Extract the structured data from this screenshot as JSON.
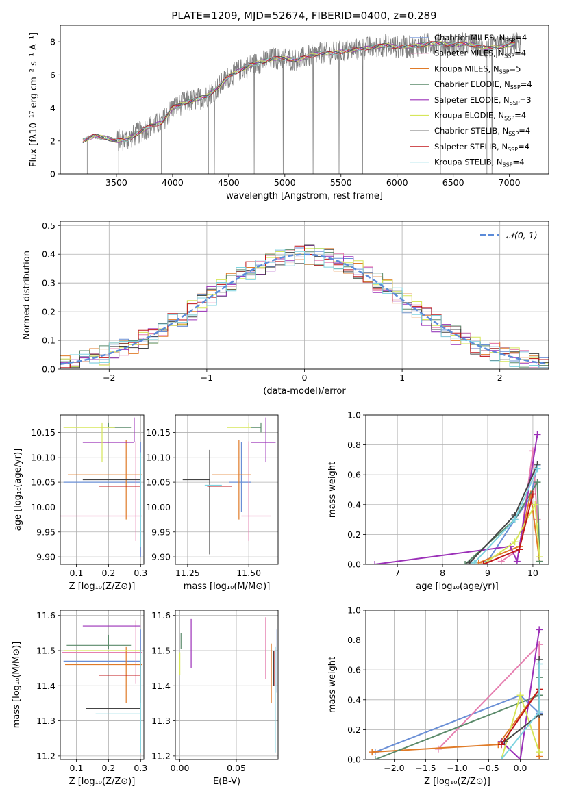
{
  "figure": {
    "title": "PLATE=1209, MJD=52674, FIBERID=0400, z=0.289"
  },
  "colors": {
    "Chabrier MILES": "#6a8fd6",
    "Salpeter MILES": "#e67fb0",
    "Kroupa MILES": "#e07b28",
    "Chabrier ELODIE": "#5a8a6a",
    "Salpeter ELODIE": "#9b30b8",
    "Kroupa ELODIE": "#d6e65a",
    "Chabrier STELIB": "#444444",
    "Salpeter STELIB": "#c0161a",
    "Kroupa STELIB": "#7dd3e0",
    "data": "#808080",
    "normal": "#5b8bd9"
  },
  "chart_data": [
    {
      "id": "spectrum",
      "type": "line",
      "xlabel": "wavelength [Angstrom, rest frame]",
      "ylabel": "Flux [fλ10⁻¹⁷ erg cm⁻² s⁻¹ A⁻¹]",
      "xlim": [
        3000,
        7350
      ],
      "ylim": [
        0,
        9
      ],
      "xticks": [
        3500,
        4000,
        4500,
        5000,
        5500,
        6000,
        6500,
        7000
      ],
      "yticks": [
        0,
        2,
        4,
        6,
        8
      ],
      "legend_position": "top-right",
      "legend": [
        {
          "label": "Chabrier MILES, N",
          "sub": "SSP",
          "tail": "=4",
          "key": "Chabrier MILES"
        },
        {
          "label": "Salpeter MILES, N",
          "sub": "SSP",
          "tail": "=4",
          "key": "Salpeter MILES"
        },
        {
          "label": "Kroupa MILES, N",
          "sub": "SSP",
          "tail": "=5",
          "key": "Kroupa MILES"
        },
        {
          "label": "Chabrier ELODIE, N",
          "sub": "SSP",
          "tail": "=4",
          "key": "Chabrier ELODIE"
        },
        {
          "label": "Salpeter ELODIE, N",
          "sub": "SSP",
          "tail": "=3",
          "key": "Salpeter ELODIE"
        },
        {
          "label": "Kroupa ELODIE, N",
          "sub": "SSP",
          "tail": "=4",
          "key": "Kroupa ELODIE"
        },
        {
          "label": "Chabrier STELIB, N",
          "sub": "SSP",
          "tail": "=4",
          "key": "Chabrier STELIB"
        },
        {
          "label": "Salpeter STELIB, N",
          "sub": "SSP",
          "tail": "=4",
          "key": "Salpeter STELIB"
        },
        {
          "label": "Kroupa STELIB, N",
          "sub": "SSP",
          "tail": "=4",
          "key": "Kroupa STELIB"
        }
      ],
      "continuum": {
        "x": [
          3200,
          3300,
          3400,
          3500,
          3600,
          3700,
          3800,
          3900,
          4000,
          4100,
          4200,
          4300,
          4400,
          4500,
          4600,
          4700,
          4800,
          4900,
          5000,
          5100,
          5200,
          5300,
          5400,
          5500,
          5600,
          5700,
          5800,
          5900,
          6000,
          6100,
          6200,
          6300,
          6400,
          6500,
          6600,
          6700,
          6800,
          6900,
          7000,
          7100,
          7200
        ],
        "y": [
          2.0,
          2.3,
          2.2,
          2.0,
          2.1,
          2.5,
          2.9,
          3.1,
          4.0,
          4.3,
          4.5,
          4.7,
          5.2,
          5.9,
          6.3,
          6.6,
          6.8,
          7.0,
          7.0,
          6.9,
          7.1,
          7.3,
          7.3,
          7.4,
          7.5,
          7.6,
          7.7,
          7.8,
          7.7,
          7.7,
          7.8,
          7.9,
          7.9,
          7.8,
          7.9,
          7.8,
          7.6,
          7.7,
          7.8,
          8.0,
          8.0
        ]
      },
      "data_noise": 0.7,
      "data_range": [
        3200,
        7100
      ]
    },
    {
      "id": "residuals",
      "type": "line",
      "xlabel": "(data-model)/error",
      "ylabel": "Normed distribution",
      "xlim": [
        -2.5,
        2.5
      ],
      "ylim": [
        0,
        0.515
      ],
      "xticks": [
        -2,
        -1,
        0,
        1,
        2
      ],
      "yticks": [
        0.0,
        0.1,
        0.2,
        0.3,
        0.4,
        0.5
      ],
      "grid": true,
      "legend_position": "top-right",
      "legend_label": "𝒩(0, 1)",
      "bin_width": 0.1
    },
    {
      "id": "age_vs_Z",
      "type": "scatter",
      "xlabel": "Z [log₁₀(Z/Z⊙)]",
      "ylabel": "age  [log₁₀(age/yr)]",
      "xlim": [
        0.05,
        0.31
      ],
      "ylim": [
        9.885,
        10.185
      ],
      "xticks": [
        0.1,
        0.2,
        0.3
      ],
      "yticks": [
        9.9,
        9.95,
        10.0,
        10.05,
        10.1,
        10.15
      ],
      "grid": true,
      "points": [
        {
          "key": "Chabrier MILES",
          "x": 0.3,
          "y": 10.05,
          "xerr": [
            0.24,
            0.0
          ],
          "yerr": [
            0.15,
            0.08
          ]
        },
        {
          "key": "Salpeter MILES",
          "x": 0.285,
          "y": 9.982,
          "xerr": [
            0.24,
            0.02
          ],
          "yerr": [
            0.05,
            0.15
          ]
        },
        {
          "key": "Kroupa MILES",
          "x": 0.255,
          "y": 10.065,
          "xerr": [
            0.18,
            0.05
          ],
          "yerr": [
            0.09,
            0.07
          ]
        },
        {
          "key": "Chabrier ELODIE",
          "x": 0.2,
          "y": 10.16,
          "xerr": [
            0.0,
            0.07
          ],
          "yerr": [
            0.0,
            0.01
          ]
        },
        {
          "key": "Salpeter ELODIE",
          "x": 0.28,
          "y": 10.13,
          "xerr": [
            0.16,
            0.0
          ],
          "yerr": [
            0.0,
            0.05
          ]
        },
        {
          "key": "Kroupa ELODIE",
          "x": 0.18,
          "y": 10.16,
          "xerr": [
            0.12,
            0.04
          ],
          "yerr": [
            0.07,
            0.01
          ]
        },
        {
          "key": "Chabrier STELIB",
          "x": 0.24,
          "y": 10.055,
          "xerr": [
            0.12,
            0.06
          ],
          "yerr": [
            0.0,
            0.0
          ]
        },
        {
          "key": "Salpeter STELIB",
          "x": 0.3,
          "y": 10.042,
          "xerr": [
            0.13,
            0.0
          ],
          "yerr": [
            0.0,
            0.0
          ]
        },
        {
          "key": "Kroupa STELIB",
          "x": 0.3,
          "y": 10.05,
          "xerr": [
            0.0,
            0.0
          ],
          "yerr": [
            0.13,
            0.06
          ]
        }
      ]
    },
    {
      "id": "age_vs_mass",
      "type": "scatter",
      "xlabel": "mass [log₁₀(M/M⊙)]",
      "ylabel": "",
      "xlim": [
        11.2,
        11.62
      ],
      "ylim": [
        9.885,
        10.185
      ],
      "xticks": [
        11.25,
        11.5
      ],
      "yticks": [
        9.9,
        9.95,
        10.0,
        10.05,
        10.1,
        10.15
      ],
      "grid": true,
      "points": [
        {
          "key": "Chabrier MILES",
          "x": 11.47,
          "y": 10.05,
          "xerr": [
            0.05,
            0.04
          ],
          "yerr": [
            0.06,
            0.08
          ]
        },
        {
          "key": "Salpeter MILES",
          "x": 11.5,
          "y": 9.982,
          "xerr": [
            0.03,
            0.09
          ],
          "yerr": [
            0.05,
            0.15
          ]
        },
        {
          "key": "Kroupa MILES",
          "x": 11.46,
          "y": 10.065,
          "xerr": [
            0.11,
            0.05
          ],
          "yerr": [
            0.09,
            0.07
          ]
        },
        {
          "key": "Chabrier ELODIE",
          "x": 11.55,
          "y": 10.16,
          "xerr": [
            0.04,
            0.0
          ],
          "yerr": [
            0.01,
            0.01
          ]
        },
        {
          "key": "Salpeter ELODIE",
          "x": 11.57,
          "y": 10.13,
          "xerr": [
            0.06,
            0.04
          ],
          "yerr": [
            0.04,
            0.05
          ]
        },
        {
          "key": "Kroupa ELODIE",
          "x": 11.5,
          "y": 10.16,
          "xerr": [
            0.09,
            0.01
          ],
          "yerr": [
            0.0,
            0.01
          ]
        },
        {
          "key": "Chabrier STELIB",
          "x": 11.34,
          "y": 10.055,
          "xerr": [
            0.11,
            0.0
          ],
          "yerr": [
            0.15,
            0.06
          ]
        },
        {
          "key": "Salpeter STELIB",
          "x": 11.43,
          "y": 10.042,
          "xerr": [
            0.1,
            0.0
          ],
          "yerr": [
            0.0,
            0.0
          ]
        },
        {
          "key": "Kroupa STELIB",
          "x": 11.32,
          "y": 10.044,
          "xerr": [
            0.0,
            0.07
          ],
          "yerr": [
            0.0,
            0.0
          ]
        }
      ]
    },
    {
      "id": "weight_vs_age",
      "type": "line",
      "xlabel": "age  [log₁₀(age/yr)]",
      "ylabel": "mass weight",
      "xlim": [
        6.3,
        10.35
      ],
      "ylim": [
        0,
        1.0
      ],
      "xticks": [
        7,
        8,
        9,
        10
      ],
      "yticks": [
        0.0,
        0.2,
        0.4,
        0.6,
        0.8,
        1.0
      ],
      "grid": true,
      "series": [
        {
          "key": "Chabrier MILES",
          "x": [
            9.0,
            9.6,
            9.95,
            10.1
          ],
          "y": [
            0.02,
            0.3,
            0.45,
            0.66
          ]
        },
        {
          "key": "Salpeter MILES",
          "x": [
            9.3,
            9.7,
            10.0,
            10.1
          ],
          "y": [
            0.02,
            0.1,
            0.76,
            0.3
          ]
        },
        {
          "key": "Kroupa MILES",
          "x": [
            8.8,
            9.7,
            9.95,
            10.15
          ],
          "y": [
            0.01,
            0.12,
            0.47,
            0.02
          ]
        },
        {
          "key": "Chabrier ELODIE",
          "x": [
            8.5,
            9.6,
            10.1,
            10.15
          ],
          "y": [
            0.0,
            0.3,
            0.55,
            0.02
          ]
        },
        {
          "key": "Salpeter ELODIE",
          "x": [
            6.5,
            9.5,
            9.65,
            10.1
          ],
          "y": [
            0.0,
            0.12,
            0.02,
            0.87
          ]
        },
        {
          "key": "Kroupa ELODIE",
          "x": [
            8.9,
            9.6,
            10.05,
            10.15
          ],
          "y": [
            0.0,
            0.15,
            0.4,
            0.05
          ]
        },
        {
          "key": "Chabrier STELIB",
          "x": [
            8.6,
            9.6,
            10.1
          ],
          "y": [
            0.01,
            0.33,
            0.67
          ]
        },
        {
          "key": "Salpeter STELIB",
          "x": [
            8.9,
            9.7,
            10.0
          ],
          "y": [
            0.0,
            0.1,
            0.47
          ]
        },
        {
          "key": "Kroupa STELIB",
          "x": [
            8.7,
            9.6,
            10.1
          ],
          "y": [
            0.01,
            0.3,
            0.64
          ]
        }
      ]
    },
    {
      "id": "mass_vs_Z",
      "type": "scatter",
      "xlabel": "Z [log₁₀(Z/Z⊙)]",
      "ylabel": "mass [log₁₀(M/M⊙)]",
      "xlim": [
        0.05,
        0.31
      ],
      "ylim": [
        11.19,
        11.615
      ],
      "xticks": [
        0.1,
        0.2,
        0.3
      ],
      "yticks": [
        11.2,
        11.3,
        11.4,
        11.5,
        11.6
      ],
      "grid": true,
      "points": [
        {
          "key": "Chabrier MILES",
          "x": 0.3,
          "y": 11.47,
          "xerr": [
            0.24,
            0.0
          ],
          "yerr": [
            0.09,
            0.09
          ]
        },
        {
          "key": "Salpeter MILES",
          "x": 0.285,
          "y": 11.495,
          "xerr": [
            0.23,
            0.02
          ],
          "yerr": [
            0.09,
            0.09
          ]
        },
        {
          "key": "Kroupa MILES",
          "x": 0.255,
          "y": 11.46,
          "xerr": [
            0.19,
            0.05
          ],
          "yerr": [
            0.11,
            0.05
          ]
        },
        {
          "key": "Chabrier ELODIE",
          "x": 0.2,
          "y": 11.515,
          "xerr": [
            0.13,
            0.07
          ],
          "yerr": [
            0.01,
            0.03
          ]
        },
        {
          "key": "Salpeter ELODIE",
          "x": 0.28,
          "y": 11.57,
          "xerr": [
            0.16,
            0.02
          ],
          "yerr": [
            0.0,
            0.0
          ]
        },
        {
          "key": "Kroupa ELODIE",
          "x": 0.18,
          "y": 11.5,
          "xerr": [
            0.12,
            0.12
          ],
          "yerr": [
            0.0,
            0.0
          ]
        },
        {
          "key": "Chabrier STELIB",
          "x": 0.24,
          "y": 11.335,
          "xerr": [
            0.11,
            0.06
          ],
          "yerr": [
            0.0,
            0.0
          ]
        },
        {
          "key": "Salpeter STELIB",
          "x": 0.3,
          "y": 11.43,
          "xerr": [
            0.13,
            0.0
          ],
          "yerr": [
            0.08,
            0.07
          ]
        },
        {
          "key": "Kroupa STELIB",
          "x": 0.3,
          "y": 11.32,
          "xerr": [
            0.14,
            0.0
          ],
          "yerr": [
            0.11,
            0.18
          ]
        }
      ]
    },
    {
      "id": "mass_vs_ebv",
      "type": "scatter",
      "xlabel": "E(B-V)",
      "ylabel": "",
      "xlim": [
        -0.004,
        0.087
      ],
      "ylim": [
        11.19,
        11.615
      ],
      "xticks": [
        0.0,
        0.05
      ],
      "yticks": [
        11.2,
        11.3,
        11.4,
        11.5,
        11.6
      ],
      "grid": true,
      "points": [
        {
          "key": "Chabrier MILES",
          "x": 0.086,
          "y": 11.47,
          "xerr": [
            0,
            0
          ],
          "yerr": [
            0.09,
            0.09
          ]
        },
        {
          "key": "Salpeter MILES",
          "x": 0.076,
          "y": 11.505,
          "xerr": [
            0,
            0
          ],
          "yerr": [
            0.085,
            0.09
          ]
        },
        {
          "key": "Kroupa MILES",
          "x": 0.081,
          "y": 11.44,
          "xerr": [
            0,
            0
          ],
          "yerr": [
            0.09,
            0.08
          ]
        },
        {
          "key": "Chabrier ELODIE",
          "x": 0.001,
          "y": 11.515,
          "xerr": [
            0,
            0
          ],
          "yerr": [
            0.01,
            0.035
          ]
        },
        {
          "key": "Salpeter ELODIE",
          "x": 0.01,
          "y": 11.52,
          "xerr": [
            0,
            0
          ],
          "yerr": [
            0.07,
            0.07
          ]
        },
        {
          "key": "Kroupa ELODIE",
          "x": 0.0,
          "y": 11.495,
          "xerr": [
            0,
            0
          ],
          "yerr": [
            0.065,
            0.0
          ]
        },
        {
          "key": "Chabrier STELIB",
          "x": 0.083,
          "y": 11.46,
          "xerr": [
            0,
            0
          ],
          "yerr": [
            0.06,
            0.04
          ]
        },
        {
          "key": "Salpeter STELIB",
          "x": 0.084,
          "y": 11.45,
          "xerr": [
            0,
            0
          ],
          "yerr": [
            0.05,
            0.05
          ]
        },
        {
          "key": "Kroupa STELIB",
          "x": 0.0845,
          "y": 11.33,
          "xerr": [
            0,
            0
          ],
          "yerr": [
            0.12,
            0.18
          ]
        }
      ]
    },
    {
      "id": "weight_vs_Z",
      "type": "line",
      "xlabel": "Z [log₁₀(Z/Z⊙)]",
      "ylabel": "mass weight",
      "xlim": [
        -2.45,
        0.45
      ],
      "ylim": [
        0,
        1.0
      ],
      "xticks": [
        -2.0,
        -1.5,
        -1.0,
        -0.5,
        0.0
      ],
      "yticks": [
        0.0,
        0.2,
        0.4,
        0.6,
        0.8,
        1.0
      ],
      "grid": true,
      "series": [
        {
          "key": "Chabrier MILES",
          "x": [
            -2.3,
            0.0,
            0.3
          ],
          "y": [
            0.05,
            0.43,
            0.31
          ]
        },
        {
          "key": "Salpeter MILES",
          "x": [
            -1.3,
            0.3,
            0.3
          ],
          "y": [
            0.07,
            0.77,
            0.02
          ]
        },
        {
          "key": "Kroupa MILES",
          "x": [
            -2.35,
            -0.35,
            0.3,
            0.3
          ],
          "y": [
            0.05,
            0.1,
            0.47,
            0.02
          ]
        },
        {
          "key": "Chabrier ELODIE",
          "x": [
            -2.3,
            0.3,
            0.3
          ],
          "y": [
            0.0,
            0.43,
            0.55
          ]
        },
        {
          "key": "Salpeter ELODIE",
          "x": [
            -0.3,
            0.0,
            0.3
          ],
          "y": [
            0.12,
            0.0,
            0.87
          ]
        },
        {
          "key": "Kroupa ELODIE",
          "x": [
            -0.3,
            0.0,
            0.3
          ],
          "y": [
            0.0,
            0.43,
            0.05
          ]
        },
        {
          "key": "Chabrier STELIB",
          "x": [
            -0.25,
            0.3,
            0.3
          ],
          "y": [
            0.12,
            0.3,
            0.67
          ]
        },
        {
          "key": "Salpeter STELIB",
          "x": [
            -0.3,
            0.3
          ],
          "y": [
            0.1,
            0.47
          ]
        },
        {
          "key": "Kroupa STELIB",
          "x": [
            -0.3,
            0.3,
            0.3
          ],
          "y": [
            0.0,
            0.32,
            0.64
          ]
        }
      ]
    }
  ]
}
